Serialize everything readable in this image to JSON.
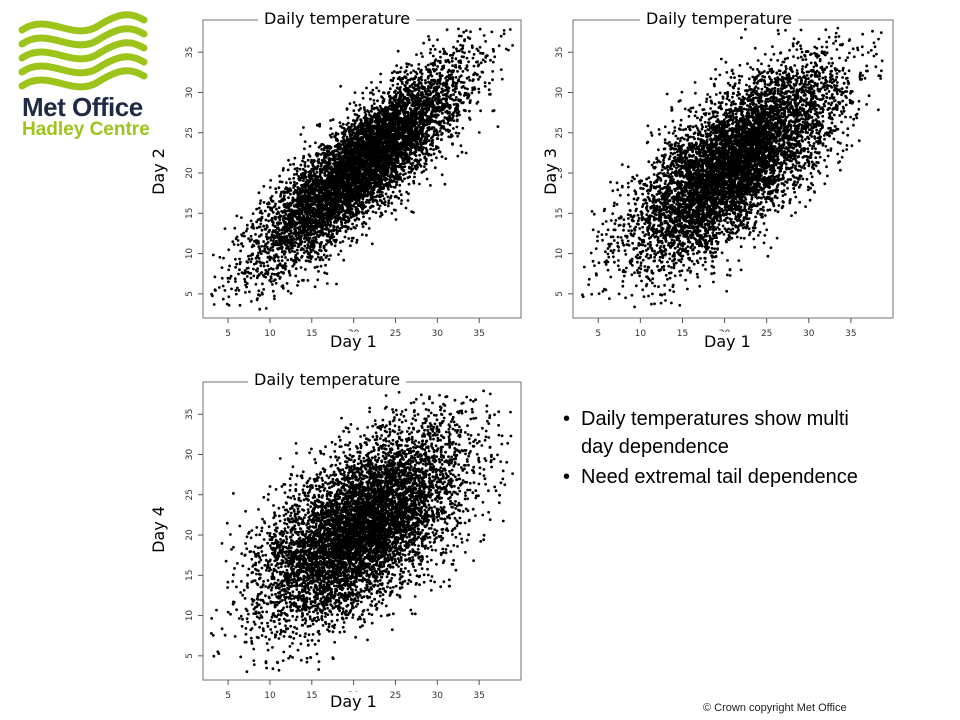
{
  "logo": {
    "line1": "Met Office",
    "line2": "Hadley Centre",
    "wave_color": "#9cc41b",
    "text_color": "#1f2a44"
  },
  "bullets": [
    "Daily temperatures show multi day dependence",
    "Need extremal tail dependence"
  ],
  "copyright": "© Crown copyright   Met Office",
  "chart_data": [
    {
      "type": "scatter",
      "title": "Daily temperature",
      "xlabel": "Day 1",
      "ylabel": "Day 2",
      "xlim": [
        2,
        40
      ],
      "ylim": [
        2,
        39
      ],
      "xticks": [
        5,
        10,
        15,
        20,
        25,
        30,
        35
      ],
      "yticks": [
        5,
        10,
        15,
        20,
        25,
        30,
        35
      ],
      "marker_color": "#000000",
      "approx_points": 7000,
      "correlation": 0.85,
      "mean": [
        21,
        21
      ],
      "sd": [
        6,
        6
      ],
      "x_range_observed": [
        3,
        39
      ],
      "y_range_observed": [
        3,
        38
      ]
    },
    {
      "type": "scatter",
      "title": "Daily temperature",
      "xlabel": "Day 1",
      "ylabel": "Day 3",
      "xlim": [
        2,
        40
      ],
      "ylim": [
        2,
        39
      ],
      "xticks": [
        5,
        10,
        15,
        20,
        25,
        30,
        35
      ],
      "yticks": [
        5,
        10,
        15,
        20,
        25,
        30,
        35
      ],
      "marker_color": "#000000",
      "approx_points": 7000,
      "correlation": 0.7,
      "mean": [
        21,
        21
      ],
      "sd": [
        6,
        6
      ],
      "x_range_observed": [
        3,
        39
      ],
      "y_range_observed": [
        3,
        38
      ]
    },
    {
      "type": "scatter",
      "title": "Daily temperature",
      "xlabel": "Day 1",
      "ylabel": "Day 4",
      "xlim": [
        2,
        40
      ],
      "ylim": [
        2,
        39
      ],
      "xticks": [
        5,
        10,
        15,
        20,
        25,
        30,
        35
      ],
      "yticks": [
        5,
        10,
        15,
        20,
        25,
        30,
        35
      ],
      "marker_color": "#000000",
      "approx_points": 7000,
      "correlation": 0.6,
      "mean": [
        21,
        21
      ],
      "sd": [
        6,
        6
      ],
      "x_range_observed": [
        3,
        39
      ],
      "y_range_observed": [
        3,
        38
      ]
    }
  ]
}
